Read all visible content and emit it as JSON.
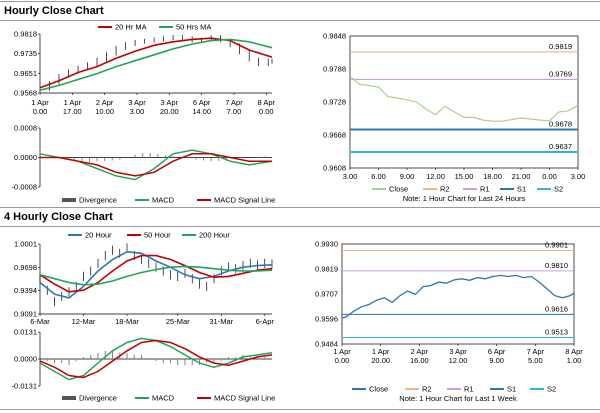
{
  "titles": {
    "hourly": "Hourly Close Chart",
    "four_hourly": "4 Hourly Close Chart"
  },
  "colors": {
    "ma_short": "#c00000",
    "ma_long": "#1fa55a",
    "ma_20h_4h": "#2e75b6",
    "close_line_1h": "#a9d18e",
    "close_line_4h": "#2e75b6",
    "r2": "#f4b183",
    "r1": "#c9a0dc",
    "s1": "#2e75b6",
    "s2": "#33b5c8",
    "divergence": "#808080",
    "macd": "#1fa55a",
    "macd_signal": "#c00000"
  },
  "chart_data": [
    {
      "id": "hourly-price",
      "type": "line",
      "title": "",
      "legend": [
        "20 Hr MA",
        "50 Hrs MA"
      ],
      "legend_placement": "top",
      "x_ticks": [
        {
          "t": 0,
          "label1": "1 Apr",
          "label2": "0.00"
        },
        {
          "t": 17,
          "label1": "1 Apr",
          "label2": "17.00"
        },
        {
          "t": 34,
          "label1": "2 Apr",
          "label2": "10.00"
        },
        {
          "t": 51,
          "label1": "3 Apr",
          "label2": "3.00"
        },
        {
          "t": 68,
          "label1": "3 Apr",
          "label2": "20.00"
        },
        {
          "t": 85,
          "label1": "6 Apr",
          "label2": "14.00"
        },
        {
          "t": 102,
          "label1": "7 Apr",
          "label2": "7.00"
        },
        {
          "t": 119,
          "label1": "8 Apr",
          "label2": "0.00"
        }
      ],
      "x_range": [
        0,
        122
      ],
      "y_ticks": [
        "0.9818",
        "0.9735",
        "0.9651",
        "0.9568"
      ],
      "y_range": [
        0.9568,
        0.9818
      ],
      "series": [
        {
          "name": "20 Hr MA",
          "color_key": "ma_short",
          "x": [
            0,
            10,
            20,
            30,
            40,
            50,
            60,
            70,
            80,
            90,
            100,
            110,
            122
          ],
          "values": [
            0.959,
            0.962,
            0.9655,
            0.968,
            0.9715,
            0.9745,
            0.977,
            0.9785,
            0.9795,
            0.98,
            0.979,
            0.975,
            0.972
          ]
        },
        {
          "name": "50 Hrs MA",
          "color_key": "ma_long",
          "x": [
            0,
            10,
            20,
            30,
            40,
            50,
            60,
            70,
            80,
            90,
            100,
            110,
            122
          ],
          "values": [
            0.958,
            0.96,
            0.9625,
            0.965,
            0.968,
            0.9705,
            0.973,
            0.9755,
            0.9775,
            0.979,
            0.9795,
            0.9785,
            0.976
          ]
        }
      ],
      "close": {
        "x": [
          0,
          5,
          10,
          15,
          20,
          25,
          30,
          35,
          40,
          45,
          50,
          55,
          60,
          65,
          70,
          75,
          80,
          85,
          90,
          95,
          100,
          105,
          110,
          115,
          120,
          122
        ],
        "values": [
          0.9585,
          0.961,
          0.964,
          0.966,
          0.9675,
          0.969,
          0.971,
          0.9735,
          0.976,
          0.9775,
          0.9785,
          0.979,
          0.9795,
          0.98,
          0.9805,
          0.98,
          0.979,
          0.9795,
          0.9805,
          0.979,
          0.977,
          0.974,
          0.971,
          0.969,
          0.9705,
          0.97
        ]
      }
    },
    {
      "id": "hourly-macd",
      "type": "bar",
      "title": "",
      "legend": [
        "Divergence",
        "MACD",
        "MACD Signal Line"
      ],
      "legend_placement": "bottom",
      "y_ticks": [
        "0.0008",
        "0.0000",
        "-0.0008"
      ],
      "y_range": [
        -0.0008,
        0.0008
      ],
      "x_range": [
        0,
        122
      ],
      "macd": {
        "x": [
          0,
          10,
          20,
          30,
          40,
          50,
          60,
          70,
          80,
          90,
          100,
          110,
          122
        ],
        "values": [
          0.0001,
          0.0,
          -0.0001,
          -0.0003,
          -0.0005,
          -0.0006,
          -0.0003,
          0.0001,
          0.0002,
          0.0001,
          -0.0001,
          -0.0002,
          -0.0001
        ]
      },
      "signal": {
        "x": [
          0,
          10,
          20,
          30,
          40,
          50,
          60,
          70,
          80,
          90,
          100,
          110,
          122
        ],
        "values": [
          0.0,
          0.0,
          -0.0001,
          -0.0002,
          -0.0004,
          -0.0005,
          -0.0004,
          -0.0001,
          0.0001,
          0.0001,
          0.0,
          -0.0001,
          -0.0001
        ]
      },
      "divergence": {
        "x": [
          6,
          10,
          14,
          18,
          22,
          26,
          30,
          34,
          38,
          42,
          46,
          50,
          54,
          58,
          62,
          66,
          70,
          74,
          78,
          82,
          86,
          90,
          94,
          98,
          102,
          106,
          110,
          114,
          118
        ],
        "values": [
          5e-05,
          0.0,
          -5e-05,
          -0.0001,
          -0.00012,
          -0.00012,
          -0.0001,
          -0.0001,
          -8e-05,
          -6e-05,
          0.0,
          8e-05,
          0.00012,
          0.00012,
          0.0001,
          6e-05,
          4e-05,
          2e-05,
          -2e-05,
          -5e-05,
          -8e-05,
          -0.0001,
          -0.0001,
          -8e-05,
          -4e-05,
          -2e-05,
          0.0,
          2e-05,
          3e-05
        ]
      }
    },
    {
      "id": "hourly-24h",
      "type": "line",
      "title": "",
      "note": "Note: 1 Hour Chart for Last 24 Hours",
      "legend": [
        "Close",
        "R2",
        "R1",
        "S1",
        "S2"
      ],
      "legend_placement": "bottom",
      "x_ticks": [
        "3.00",
        "6.00",
        "9.00",
        "12.00",
        "15.00",
        "18.00",
        "21.00",
        "0.00",
        "3.00"
      ],
      "x_range": [
        0,
        24
      ],
      "y_ticks": [
        "0.9848",
        "0.9788",
        "0.9728",
        "0.9668",
        "0.9608"
      ],
      "y_range": [
        0.9608,
        0.9848
      ],
      "levels": [
        {
          "name": "R2",
          "color_key": "r2",
          "value": 0.9819,
          "label": "0.9819"
        },
        {
          "name": "R1",
          "color_key": "r1",
          "value": 0.9769,
          "label": "0.9769"
        },
        {
          "name": "S1",
          "color_key": "s1",
          "value": 0.9678,
          "label": "0.9678"
        },
        {
          "name": "S2",
          "color_key": "s2",
          "value": 0.9637,
          "label": "0.9637"
        }
      ],
      "close": {
        "x": [
          0,
          1,
          2,
          3,
          4,
          5,
          6,
          7,
          8,
          9,
          10,
          11,
          12,
          13,
          14,
          15,
          16,
          17,
          18,
          19,
          20,
          21,
          22,
          23,
          24
        ],
        "values": [
          0.9775,
          0.976,
          0.9758,
          0.9755,
          0.9738,
          0.9735,
          0.9732,
          0.9728,
          0.9715,
          0.9705,
          0.972,
          0.971,
          0.97,
          0.97,
          0.9695,
          0.9693,
          0.9693,
          0.9696,
          0.9699,
          0.9697,
          0.9695,
          0.9694,
          0.971,
          0.9712,
          0.9722
        ]
      }
    },
    {
      "id": "four-hourly-price",
      "type": "line",
      "title": "",
      "legend": [
        "20 Hour",
        "50 Hour",
        "200 Hour"
      ],
      "legend_placement": "top",
      "x_ticks": [
        {
          "t": 0,
          "label": "6-Mar"
        },
        {
          "t": 6,
          "label": "12-Mar"
        },
        {
          "t": 12,
          "label": "18-Mar"
        },
        {
          "t": 19,
          "label": "25-Mar"
        },
        {
          "t": 25,
          "label": "31-Mar"
        },
        {
          "t": 31,
          "label": "6-Apr"
        }
      ],
      "x_range": [
        0,
        32
      ],
      "y_ticks": [
        "1.0001",
        "0.9698",
        "0.9394",
        "0.9091"
      ],
      "y_range": [
        0.9091,
        1.0001
      ],
      "series": [
        {
          "name": "20 Hour",
          "color_key": "ma_20h_4h",
          "x": [
            0,
            2,
            4,
            6,
            8,
            10,
            12,
            14,
            16,
            18,
            20,
            22,
            24,
            26,
            28,
            30,
            32
          ],
          "values": [
            0.95,
            0.935,
            0.93,
            0.945,
            0.965,
            0.98,
            0.99,
            0.988,
            0.978,
            0.97,
            0.96,
            0.955,
            0.958,
            0.965,
            0.97,
            0.972,
            0.973
          ]
        },
        {
          "name": "50 Hour",
          "color_key": "ma_short",
          "x": [
            0,
            2,
            4,
            6,
            8,
            10,
            12,
            14,
            16,
            18,
            20,
            22,
            24,
            26,
            28,
            30,
            32
          ],
          "values": [
            0.96,
            0.948,
            0.938,
            0.94,
            0.95,
            0.965,
            0.978,
            0.985,
            0.985,
            0.98,
            0.972,
            0.963,
            0.957,
            0.958,
            0.962,
            0.966,
            0.968
          ]
        },
        {
          "name": "200 Hour",
          "color_key": "ma_long",
          "x": [
            0,
            2,
            4,
            6,
            8,
            10,
            12,
            14,
            16,
            18,
            20,
            22,
            24,
            26,
            28,
            30,
            32
          ],
          "values": [
            0.96,
            0.955,
            0.95,
            0.947,
            0.948,
            0.952,
            0.958,
            0.963,
            0.967,
            0.97,
            0.971,
            0.97,
            0.968,
            0.966,
            0.965,
            0.965,
            0.966
          ]
        }
      ],
      "close": {
        "x": [
          0,
          1,
          2,
          3,
          4,
          5,
          6,
          7,
          8,
          9,
          10,
          11,
          12,
          13,
          14,
          15,
          16,
          17,
          18,
          19,
          20,
          21,
          22,
          23,
          24,
          25,
          26,
          27,
          28,
          29,
          30,
          31,
          32
        ],
        "values": [
          0.955,
          0.94,
          0.925,
          0.932,
          0.938,
          0.945,
          0.958,
          0.965,
          0.975,
          0.985,
          0.992,
          0.988,
          0.995,
          0.985,
          0.98,
          0.975,
          0.97,
          0.965,
          0.96,
          0.958,
          0.962,
          0.955,
          0.948,
          0.945,
          0.955,
          0.965,
          0.97,
          0.968,
          0.972,
          0.975,
          0.973,
          0.975,
          0.974
        ]
      }
    },
    {
      "id": "four-hourly-macd",
      "type": "bar",
      "title": "",
      "legend": [
        "Divergence",
        "MACD",
        "MACD Signal Line"
      ],
      "legend_placement": "bottom",
      "y_ticks": [
        "0.0131",
        "0.0000",
        "-0.0131"
      ],
      "y_range": [
        -0.0131,
        0.0131
      ],
      "x_range": [
        0,
        32
      ],
      "macd": {
        "x": [
          0,
          2,
          4,
          6,
          8,
          10,
          12,
          14,
          16,
          18,
          20,
          22,
          24,
          26,
          28,
          30,
          32
        ],
        "values": [
          -0.002,
          -0.006,
          -0.01,
          -0.008,
          -0.002,
          0.004,
          0.008,
          0.01,
          0.009,
          0.006,
          0.002,
          -0.002,
          -0.004,
          -0.002,
          0.001,
          0.002,
          0.003
        ]
      },
      "signal": {
        "x": [
          0,
          2,
          4,
          6,
          8,
          10,
          12,
          14,
          16,
          18,
          20,
          22,
          24,
          26,
          28,
          30,
          32
        ],
        "values": [
          -0.001,
          -0.004,
          -0.008,
          -0.009,
          -0.006,
          -0.001,
          0.004,
          0.008,
          0.009,
          0.008,
          0.005,
          0.001,
          -0.002,
          -0.003,
          -0.001,
          0.001,
          0.002
        ]
      },
      "divergence": {
        "x": [
          1,
          2,
          3,
          4,
          5,
          6,
          7,
          8,
          9,
          10,
          11,
          12,
          13,
          14,
          15,
          16,
          17,
          18,
          19,
          20,
          21,
          22,
          23,
          24,
          25,
          26,
          27,
          28,
          29,
          30,
          31
        ],
        "values": [
          -0.001,
          -0.002,
          -0.002,
          -0.003,
          -0.001,
          0.001,
          0.002,
          0.003,
          0.004,
          0.004,
          0.003,
          0.003,
          0.002,
          0.002,
          0.0,
          -0.001,
          -0.002,
          -0.002,
          -0.003,
          -0.003,
          -0.003,
          -0.003,
          -0.002,
          -0.002,
          -0.001,
          0.001,
          0.001,
          0.002,
          0.001,
          0.001,
          0.001
        ]
      }
    },
    {
      "id": "four-hourly-week",
      "type": "line",
      "title": "",
      "note": "Note: 1 Hour Chart for Last 1 Week",
      "legend": [
        "Close",
        "R2",
        "R1",
        "S1",
        "S2"
      ],
      "legend_placement": "bottom",
      "x_ticks": [
        {
          "t": 0,
          "label1": "1 Apr",
          "label2": "0.00"
        },
        {
          "t": 1,
          "label1": "1 Apr",
          "label2": "20.00"
        },
        {
          "t": 2,
          "label1": "2 Apr",
          "label2": "16.00"
        },
        {
          "t": 3,
          "label1": "3 Apr",
          "label2": "12.00"
        },
        {
          "t": 4,
          "label1": "6 Apr",
          "label2": "9.00"
        },
        {
          "t": 5,
          "label1": "7 Apr",
          "label2": "5.00"
        },
        {
          "t": 6,
          "label1": "8 Apr",
          "label2": "1.00"
        }
      ],
      "x_range": [
        0,
        6
      ],
      "y_ticks": [
        "0.9930",
        "0.9819",
        "0.9707",
        "0.9596",
        "0.9484"
      ],
      "y_range": [
        0.9484,
        0.993
      ],
      "levels": [
        {
          "name": "R2",
          "color_key": "r2",
          "value": 0.9901,
          "label": "0.9901"
        },
        {
          "name": "R1",
          "color_key": "r1",
          "value": 0.981,
          "label": "0.9810"
        },
        {
          "name": "S1",
          "color_key": "s1",
          "value": 0.9616,
          "label": "0.9616"
        },
        {
          "name": "S2",
          "color_key": "s2",
          "value": 0.9513,
          "label": "0.9513"
        }
      ],
      "close": {
        "x": [
          0,
          0.1,
          0.3,
          0.5,
          0.7,
          0.9,
          1.1,
          1.3,
          1.5,
          1.7,
          1.9,
          2.1,
          2.3,
          2.5,
          2.7,
          2.9,
          3.1,
          3.3,
          3.5,
          3.7,
          3.9,
          4.1,
          4.3,
          4.5,
          4.7,
          4.9,
          5.1,
          5.3,
          5.5,
          5.7,
          5.9,
          6.0
        ],
        "values": [
          0.96,
          0.9605,
          0.963,
          0.965,
          0.966,
          0.968,
          0.969,
          0.967,
          0.97,
          0.972,
          0.9705,
          0.974,
          0.9745,
          0.976,
          0.9755,
          0.977,
          0.9775,
          0.9768,
          0.978,
          0.9775,
          0.9785,
          0.979,
          0.9785,
          0.979,
          0.978,
          0.9785,
          0.976,
          0.973,
          0.97,
          0.969,
          0.97,
          0.971
        ]
      }
    }
  ]
}
